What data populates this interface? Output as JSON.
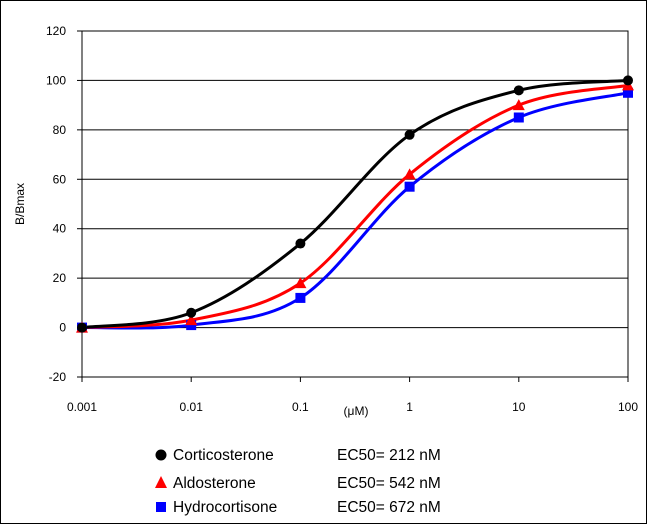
{
  "chart_data": {
    "type": "line",
    "xscale": "log",
    "xlim": [
      0.001,
      100
    ],
    "ylim": [
      -20,
      120
    ],
    "ylabel": "B/Bmax",
    "xlabel": "(μM)",
    "x_ticks": [
      "0.001",
      "0.01",
      "0.1",
      "1",
      "10",
      "100"
    ],
    "y_ticks": [
      "-20",
      "0",
      "20",
      "40",
      "60",
      "80",
      "100",
      "120"
    ],
    "grid": "horizontal",
    "legend_position": "bottom",
    "series": [
      {
        "name": "Corticosterone",
        "ec50_label": "EC50= 212 nM",
        "color": "#000000",
        "marker": "circle",
        "x": [
          0.001,
          0.01,
          0.1,
          1,
          10,
          100
        ],
        "y": [
          0,
          6,
          34,
          78,
          96,
          100
        ]
      },
      {
        "name": "Aldosterone",
        "ec50_label": "EC50= 542 nM",
        "color": "#ff0000",
        "marker": "triangle",
        "x": [
          0.001,
          0.01,
          0.1,
          1,
          10,
          100
        ],
        "y": [
          0,
          3,
          18,
          62,
          90,
          98
        ]
      },
      {
        "name": "Hydrocortisone",
        "ec50_label": "EC50= 672 nM",
        "color": "#0000ff",
        "marker": "square",
        "x": [
          0.001,
          0.01,
          0.1,
          1,
          10,
          100
        ],
        "y": [
          0,
          1,
          12,
          57,
          85,
          95
        ]
      }
    ]
  }
}
